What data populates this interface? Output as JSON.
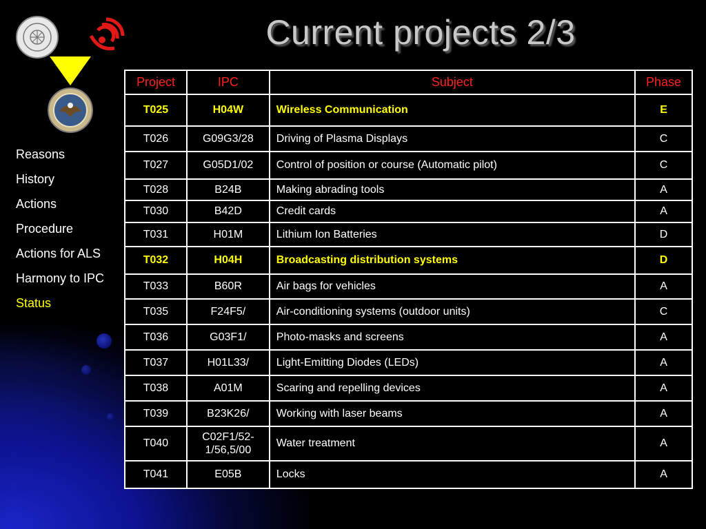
{
  "slide": {
    "title": "Current projects 2/3"
  },
  "nav": {
    "items": [
      {
        "label": "Reasons",
        "active": false
      },
      {
        "label": "History",
        "active": false
      },
      {
        "label": "Actions",
        "active": false
      },
      {
        "label": "Procedure",
        "active": false
      },
      {
        "label": "Actions for ALS",
        "active": false
      },
      {
        "label": "Harmony to IPC",
        "active": false
      },
      {
        "label": "Status",
        "active": true
      }
    ]
  },
  "colors": {
    "header_text": "#ff2020",
    "highlight": "#ffff00",
    "title": "#c8c8c8",
    "background": "#000000"
  },
  "icons": [
    "jpo-seal-icon",
    "epo-logo-icon",
    "triangle-down-icon",
    "uspto-seal-icon"
  ],
  "table": {
    "headers": [
      "Project",
      "IPC",
      "Subject",
      "Phase"
    ],
    "rows": [
      {
        "project": "T025",
        "ipc": "H04W",
        "subject": "Wireless Communication",
        "phase": "E",
        "highlight": true
      },
      {
        "project": "T026",
        "ipc": "G09G3/28",
        "subject": "Driving of Plasma Displays",
        "phase": "C",
        "highlight": false
      },
      {
        "project": "T027",
        "ipc": "G05D1/02",
        "subject": "Control of position or course (Automatic pilot)",
        "phase": "C",
        "highlight": false
      },
      {
        "project": "T028",
        "ipc": "B24B",
        "subject": "Making abrading tools",
        "phase": "A",
        "highlight": false
      },
      {
        "project": "T030",
        "ipc": "B42D",
        "subject": "Credit cards",
        "phase": "A",
        "highlight": false
      },
      {
        "project": "T031",
        "ipc": "H01M",
        "subject": "Lithium Ion Batteries",
        "phase": "D",
        "highlight": false
      },
      {
        "project": "T032",
        "ipc": "H04H",
        "subject": "Broadcasting distribution systems",
        "phase": "D",
        "highlight": true
      },
      {
        "project": "T033",
        "ipc": "B60R",
        "subject": "Air bags for vehicles",
        "phase": "A",
        "highlight": false
      },
      {
        "project": "T035",
        "ipc": "F24F5/",
        "subject": "Air-conditioning systems (outdoor units)",
        "phase": "C",
        "highlight": false
      },
      {
        "project": "T036",
        "ipc": "G03F1/",
        "subject": "Photo-masks and screens",
        "phase": "A",
        "highlight": false
      },
      {
        "project": "T037",
        "ipc": "H01L33/",
        "subject": "Light-Emitting Diodes (LEDs)",
        "phase": "A",
        "highlight": false
      },
      {
        "project": "T038",
        "ipc": "A01M",
        "subject": "Scaring and repelling devices",
        "phase": "A",
        "highlight": false
      },
      {
        "project": "T039",
        "ipc": "B23K26/",
        "subject": "Working with laser beams",
        "phase": "A",
        "highlight": false
      },
      {
        "project": "T040",
        "ipc": "C02F1/52-1/56,5/00",
        "subject": "Water treatment",
        "phase": "A",
        "highlight": false
      },
      {
        "project": "T041",
        "ipc": "E05B",
        "subject": "Locks",
        "phase": "A",
        "highlight": false
      }
    ]
  }
}
